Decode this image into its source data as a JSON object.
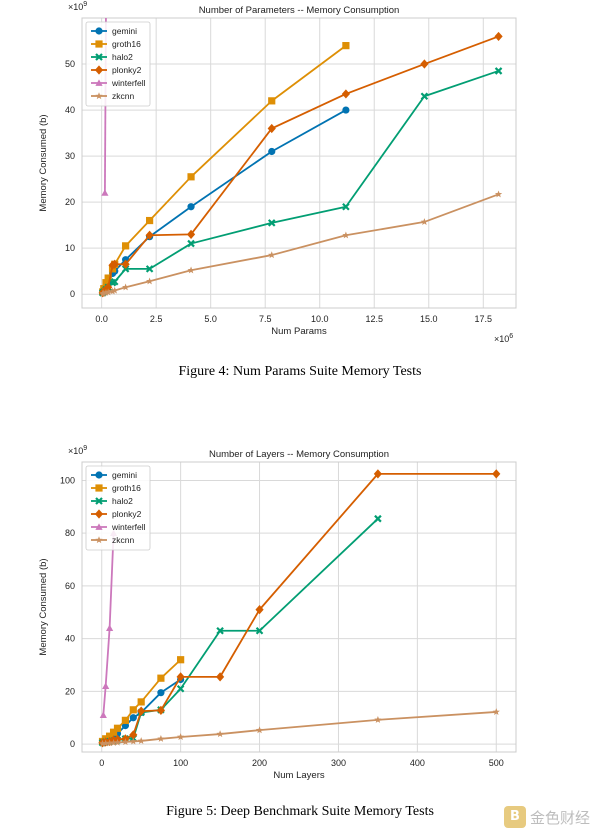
{
  "figures": [
    {
      "caption": "Figure 4: Num Params Suite Memory Tests",
      "chart_data": {
        "type": "line",
        "title": "Number of Parameters -- Memory Consumption",
        "xlabel": "Num Params",
        "ylabel": "Memory Consumed (b)",
        "x_multiplier": "×10",
        "x_exp": "6",
        "y_multiplier": "×10",
        "y_exp": "9",
        "xlim": [
          -0.9,
          19.0
        ],
        "ylim": [
          -3,
          60
        ],
        "xticks": [
          0,
          2.5,
          5,
          7.5,
          10,
          12.5,
          15,
          17.5
        ],
        "xticklabels": [
          "0.0",
          "2.5",
          "5.0",
          "7.5",
          "10.0",
          "12.5",
          "15.0",
          "17.5"
        ],
        "yticks": [
          0,
          10,
          20,
          30,
          40,
          50
        ],
        "yticklabels": [
          "0",
          "10",
          "20",
          "30",
          "40",
          "50"
        ],
        "legend_position": "top-left",
        "series": [
          {
            "name": "gemini",
            "color": "#0173b2",
            "marker": "circle",
            "x": [
              0.05,
              0.1,
              0.2,
              0.3,
              0.5,
              0.6,
              1.1,
              2.2,
              4.1,
              7.8,
              11.2
            ],
            "y": [
              0.3,
              0.5,
              1.2,
              2.2,
              4.5,
              5.0,
              7.5,
              12.5,
              19,
              31,
              40
            ]
          },
          {
            "name": "groth16",
            "color": "#de8f05",
            "marker": "square",
            "x": [
              0.05,
              0.1,
              0.2,
              0.3,
              0.5,
              0.6,
              1.1,
              2.2,
              4.1,
              7.8,
              11.2
            ],
            "y": [
              0.5,
              1.2,
              2.5,
              3.5,
              5.5,
              6.5,
              10.5,
              16,
              25.5,
              42,
              54
            ]
          },
          {
            "name": "halo2",
            "color": "#029e73",
            "marker": "x",
            "x": [
              0.05,
              0.1,
              0.2,
              0.3,
              0.5,
              0.6,
              1.1,
              2.2,
              4.1,
              7.8,
              11.2,
              14.8,
              18.2
            ],
            "y": [
              0.3,
              0.5,
              1.0,
              1.5,
              2.5,
              2.7,
              5.5,
              5.5,
              11,
              15.5,
              19,
              43,
              48.5
            ]
          },
          {
            "name": "plonky2",
            "color": "#d55e00",
            "marker": "diamond",
            "x": [
              0.05,
              0.1,
              0.2,
              0.3,
              0.5,
              0.6,
              1.1,
              2.2,
              4.1,
              7.8,
              11.2,
              14.8,
              18.2
            ],
            "y": [
              0.3,
              0.6,
              1.0,
              1.5,
              6.3,
              6.5,
              6.5,
              12.8,
              13,
              36,
              43.5,
              50,
              56
            ]
          },
          {
            "name": "winterfell",
            "color": "#cc78bc",
            "marker": "triangle",
            "x": [
              0.15,
              0.2
            ],
            "y": [
              22,
              62
            ]
          },
          {
            "name": "zkcnn",
            "color": "#ca9161",
            "marker": "star",
            "x": [
              0.05,
              0.1,
              0.2,
              0.3,
              0.5,
              0.6,
              1.1,
              2.2,
              4.1,
              7.8,
              11.2,
              14.8,
              18.2
            ],
            "y": [
              0.1,
              0.2,
              0.3,
              0.4,
              0.6,
              0.8,
              1.5,
              2.8,
              5.2,
              8.5,
              12.8,
              15.7,
              21.7
            ]
          }
        ]
      }
    },
    {
      "caption": "Figure 5: Deep Benchmark Suite Memory Tests",
      "chart_data": {
        "type": "line",
        "title": "Number of Layers -- Memory Consumption",
        "xlabel": "Num Layers",
        "ylabel": "Memory Consumed (b)",
        "x_multiplier": "",
        "x_exp": "",
        "y_multiplier": "×10",
        "y_exp": "9",
        "xlim": [
          -25,
          525
        ],
        "ylim": [
          -3,
          107
        ],
        "xticks": [
          0,
          100,
          200,
          300,
          400,
          500
        ],
        "xticklabels": [
          "0",
          "100",
          "200",
          "300",
          "400",
          "500"
        ],
        "yticks": [
          0,
          20,
          40,
          60,
          80,
          100
        ],
        "yticklabels": [
          "0",
          "20",
          "40",
          "60",
          "80",
          "100"
        ],
        "legend_position": "top-left",
        "series": [
          {
            "name": "gemini",
            "color": "#0173b2",
            "marker": "circle",
            "x": [
              1,
              5,
              10,
              15,
              20,
              30,
              40,
              50,
              75,
              100
            ],
            "y": [
              0.5,
              1,
              2,
              3,
              4,
              7,
              10,
              12,
              19.5,
              24.5
            ]
          },
          {
            "name": "groth16",
            "color": "#de8f05",
            "marker": "square",
            "x": [
              1,
              5,
              10,
              15,
              20,
              30,
              40,
              50,
              75,
              100
            ],
            "y": [
              1,
              2,
              3,
              4.5,
              6,
              9,
              13,
              16,
              25,
              32
            ]
          },
          {
            "name": "halo2",
            "color": "#029e73",
            "marker": "x",
            "x": [
              1,
              5,
              10,
              15,
              20,
              30,
              40,
              50,
              75,
              100,
              150,
              200,
              350
            ],
            "y": [
              0.5,
              0.8,
              1,
              1.2,
              1.5,
              2,
              2.2,
              12,
              13,
              21,
              43,
              43,
              85.5
            ]
          },
          {
            "name": "plonky2",
            "color": "#d55e00",
            "marker": "diamond",
            "x": [
              1,
              5,
              10,
              15,
              20,
              30,
              40,
              50,
              75,
              100,
              150,
              200,
              350,
              500
            ],
            "y": [
              0.5,
              0.8,
              1,
              1.5,
              1.8,
              2,
              3.5,
              12.5,
              12.8,
              25.5,
              25.5,
              51,
              102.5,
              102.5
            ]
          },
          {
            "name": "winterfell",
            "color": "#cc78bc",
            "marker": "triangle",
            "x": [
              2,
              5,
              10,
              15
            ],
            "y": [
              11,
              22,
              44,
              80
            ]
          },
          {
            "name": "zkcnn",
            "color": "#ca9161",
            "marker": "star",
            "x": [
              1,
              5,
              10,
              15,
              20,
              30,
              40,
              50,
              75,
              100,
              150,
              200,
              350,
              500
            ],
            "y": [
              0.2,
              0.3,
              0.4,
              0.5,
              0.6,
              0.8,
              1,
              1.2,
              2,
              2.7,
              3.8,
              5.3,
              9.2,
              12.2
            ]
          }
        ]
      }
    }
  ],
  "watermark": {
    "logo": "B",
    "text": "金色财经"
  }
}
